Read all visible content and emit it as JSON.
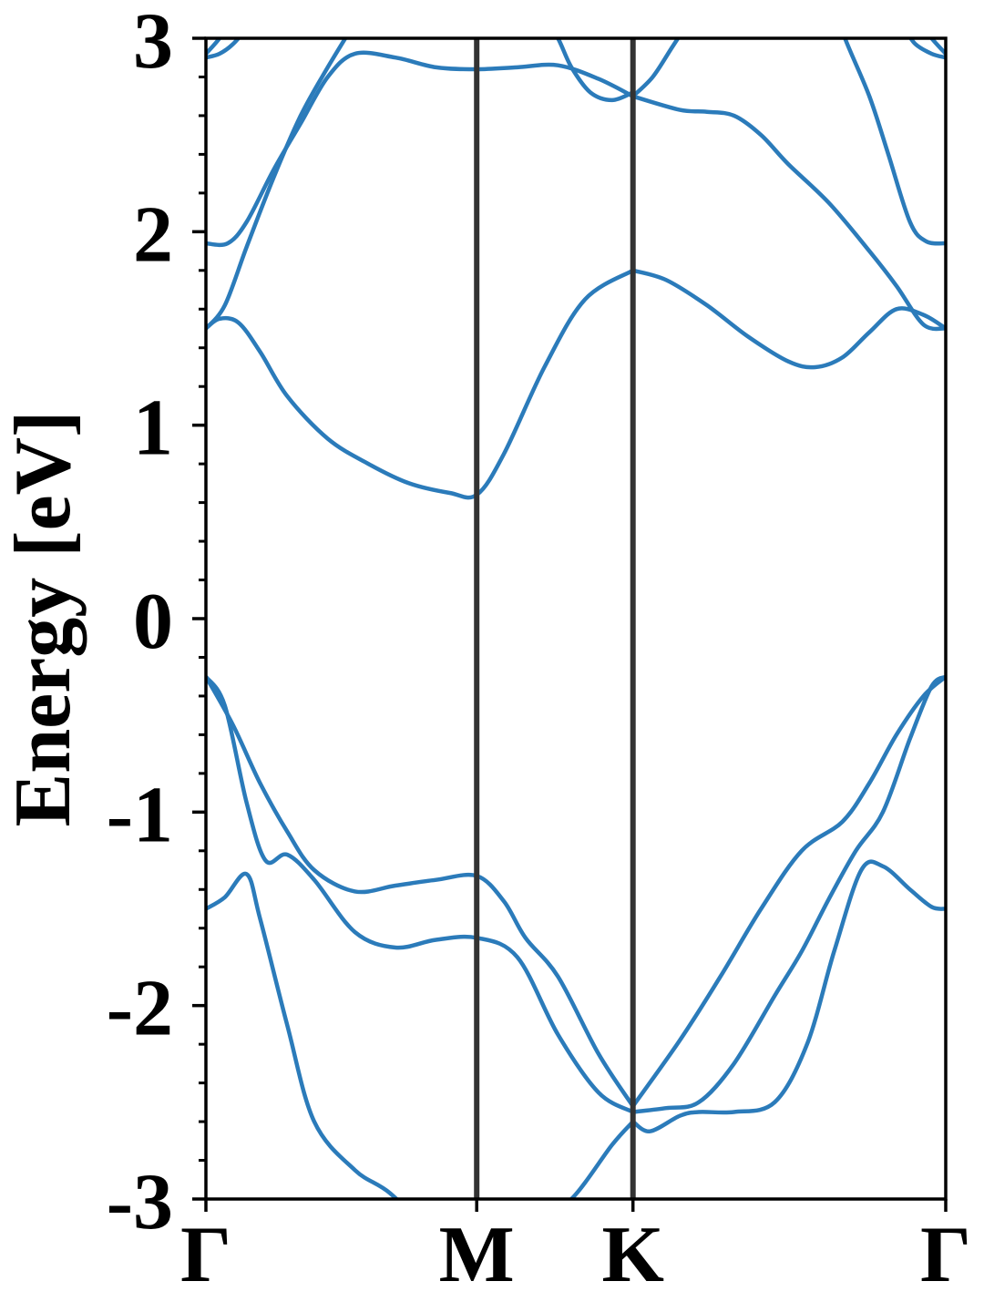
{
  "chart_data": {
    "type": "line",
    "title": "",
    "xlabel": "",
    "ylabel": "Energy [eV]",
    "ylim": [
      -3,
      3
    ],
    "xlim": [
      0,
      2.732
    ],
    "grid": false,
    "legend": "none",
    "line_color": "#2b7bba",
    "symmetry_line_color": "#333333",
    "x_ticks": [
      {
        "x": 0.0,
        "label": "Γ"
      },
      {
        "x": 1.0,
        "label": "M"
      },
      {
        "x": 1.577,
        "label": "K"
      },
      {
        "x": 2.732,
        "label": "Γ"
      }
    ],
    "symmetry_lines": [
      1.0,
      1.577
    ],
    "y_ticks": [
      {
        "y": 3,
        "label": "3"
      },
      {
        "y": 2,
        "label": "2"
      },
      {
        "y": 1,
        "label": "1"
      },
      {
        "y": 0,
        "label": "0"
      },
      {
        "y": -1,
        "label": "-1"
      },
      {
        "y": -2,
        "label": "-2"
      },
      {
        "y": -3,
        "label": "-3"
      }
    ],
    "y_minor_step": 0.2,
    "series": [
      {
        "points": [
          [
            0,
            -1.5
          ],
          [
            0.07,
            -1.44
          ],
          [
            0.15,
            -1.32
          ],
          [
            0.2,
            -1.55
          ],
          [
            0.3,
            -2.1
          ],
          [
            0.4,
            -2.6
          ],
          [
            0.55,
            -2.85
          ],
          [
            0.68,
            -2.97
          ],
          [
            0.85,
            -3.2
          ],
          [
            1.0,
            -3.35
          ],
          [
            1.2,
            -3.15
          ],
          [
            1.35,
            -3.0
          ],
          [
            1.5,
            -2.72
          ],
          [
            1.577,
            -2.6
          ]
        ]
      },
      {
        "points": [
          [
            1.577,
            -2.6
          ],
          [
            1.64,
            -2.65
          ],
          [
            1.75,
            -2.57
          ],
          [
            1.82,
            -2.55
          ],
          [
            1.95,
            -2.55
          ],
          [
            2.1,
            -2.5
          ],
          [
            2.22,
            -2.2
          ],
          [
            2.32,
            -1.72
          ],
          [
            2.42,
            -1.3
          ],
          [
            2.5,
            -1.28
          ],
          [
            2.6,
            -1.4
          ],
          [
            2.68,
            -1.49
          ],
          [
            2.732,
            -1.5
          ]
        ]
      },
      {
        "points": [
          [
            0,
            -0.3
          ],
          [
            0.07,
            -0.45
          ],
          [
            0.15,
            -0.95
          ],
          [
            0.22,
            -1.25
          ],
          [
            0.3,
            -1.22
          ],
          [
            0.4,
            -1.35
          ],
          [
            0.55,
            -1.62
          ],
          [
            0.7,
            -1.7
          ],
          [
            0.85,
            -1.66
          ],
          [
            1.0,
            -1.65
          ],
          [
            1.15,
            -1.75
          ],
          [
            1.3,
            -2.15
          ],
          [
            1.45,
            -2.45
          ],
          [
            1.577,
            -2.55
          ]
        ]
      },
      {
        "points": [
          [
            1.577,
            -2.55
          ],
          [
            1.7,
            -2.53
          ],
          [
            1.82,
            -2.5
          ],
          [
            1.95,
            -2.3
          ],
          [
            2.1,
            -1.95
          ],
          [
            2.2,
            -1.72
          ],
          [
            2.3,
            -1.45
          ],
          [
            2.4,
            -1.2
          ],
          [
            2.5,
            -1.0
          ],
          [
            2.6,
            -0.62
          ],
          [
            2.68,
            -0.35
          ],
          [
            2.732,
            -0.3
          ]
        ]
      },
      {
        "points": [
          [
            0,
            -0.3
          ],
          [
            0.1,
            -0.55
          ],
          [
            0.2,
            -0.85
          ],
          [
            0.3,
            -1.1
          ],
          [
            0.4,
            -1.3
          ],
          [
            0.55,
            -1.41
          ],
          [
            0.7,
            -1.38
          ],
          [
            0.85,
            -1.35
          ],
          [
            1.0,
            -1.33
          ],
          [
            1.1,
            -1.46
          ],
          [
            1.18,
            -1.65
          ],
          [
            1.3,
            -1.85
          ],
          [
            1.45,
            -2.25
          ],
          [
            1.577,
            -2.52
          ]
        ]
      },
      {
        "points": [
          [
            1.577,
            -2.52
          ],
          [
            1.75,
            -2.18
          ],
          [
            1.9,
            -1.85
          ],
          [
            2.05,
            -1.5
          ],
          [
            2.2,
            -1.2
          ],
          [
            2.35,
            -1.05
          ],
          [
            2.45,
            -0.85
          ],
          [
            2.55,
            -0.6
          ],
          [
            2.65,
            -0.4
          ],
          [
            2.732,
            -0.3
          ]
        ]
      },
      {
        "points": [
          [
            0,
            1.5
          ],
          [
            0.05,
            1.55
          ],
          [
            0.12,
            1.53
          ],
          [
            0.2,
            1.38
          ],
          [
            0.3,
            1.15
          ],
          [
            0.45,
            0.93
          ],
          [
            0.6,
            0.8
          ],
          [
            0.75,
            0.7
          ],
          [
            0.9,
            0.65
          ],
          [
            1.0,
            0.64
          ],
          [
            1.1,
            0.85
          ],
          [
            1.25,
            1.3
          ],
          [
            1.4,
            1.65
          ],
          [
            1.577,
            1.8
          ]
        ]
      },
      {
        "points": [
          [
            1.577,
            1.8
          ],
          [
            1.7,
            1.75
          ],
          [
            1.85,
            1.62
          ],
          [
            2.0,
            1.46
          ],
          [
            2.15,
            1.33
          ],
          [
            2.25,
            1.3
          ],
          [
            2.35,
            1.35
          ],
          [
            2.45,
            1.48
          ],
          [
            2.55,
            1.6
          ],
          [
            2.65,
            1.57
          ],
          [
            2.732,
            1.5
          ]
        ]
      },
      {
        "points": [
          [
            0,
            1.5
          ],
          [
            0.07,
            1.62
          ],
          [
            0.15,
            1.92
          ],
          [
            0.25,
            2.28
          ],
          [
            0.35,
            2.6
          ],
          [
            0.45,
            2.85
          ],
          [
            0.55,
            3.08
          ]
        ]
      },
      {
        "points": [
          [
            2.732,
            1.5
          ],
          [
            2.65,
            1.52
          ],
          [
            2.55,
            1.72
          ],
          [
            2.45,
            1.9
          ],
          [
            2.3,
            2.15
          ],
          [
            2.15,
            2.35
          ],
          [
            2.05,
            2.5
          ],
          [
            1.95,
            2.6
          ],
          [
            1.85,
            2.62
          ],
          [
            1.75,
            2.63
          ],
          [
            1.577,
            2.7
          ]
        ]
      },
      {
        "points": [
          [
            0,
            1.94
          ],
          [
            0.08,
            1.94
          ],
          [
            0.15,
            2.05
          ],
          [
            0.25,
            2.32
          ],
          [
            0.35,
            2.56
          ],
          [
            0.45,
            2.8
          ],
          [
            0.55,
            2.92
          ],
          [
            0.7,
            2.9
          ],
          [
            0.85,
            2.85
          ],
          [
            1.0,
            2.84
          ],
          [
            1.15,
            2.85
          ],
          [
            1.3,
            2.86
          ],
          [
            1.45,
            2.79
          ],
          [
            1.577,
            2.7
          ]
        ]
      },
      {
        "points": [
          [
            2.732,
            1.94
          ],
          [
            2.66,
            1.95
          ],
          [
            2.6,
            2.05
          ],
          [
            2.52,
            2.4
          ],
          [
            2.45,
            2.7
          ],
          [
            2.36,
            3.0
          ],
          [
            2.3,
            3.25
          ]
        ]
      },
      {
        "points": [
          [
            1.577,
            2.7
          ],
          [
            1.65,
            2.8
          ],
          [
            1.72,
            2.95
          ],
          [
            1.78,
            3.08
          ]
        ]
      },
      {
        "points": [
          [
            1.577,
            2.72
          ],
          [
            1.5,
            2.68
          ],
          [
            1.42,
            2.72
          ],
          [
            1.35,
            2.85
          ],
          [
            1.3,
            3.0
          ],
          [
            1.25,
            3.1
          ]
        ]
      },
      {
        "points": [
          [
            0,
            2.9
          ],
          [
            0.05,
            2.92
          ],
          [
            0.1,
            2.97
          ],
          [
            0.15,
            3.05
          ]
        ]
      },
      {
        "points": [
          [
            0,
            2.92
          ],
          [
            0.05,
            3.0
          ],
          [
            0.08,
            3.08
          ]
        ]
      },
      {
        "points": [
          [
            2.732,
            2.9
          ],
          [
            2.68,
            2.92
          ],
          [
            2.62,
            2.97
          ],
          [
            2.58,
            3.05
          ]
        ]
      },
      {
        "points": [
          [
            2.732,
            2.92
          ],
          [
            2.68,
            3.0
          ],
          [
            2.64,
            3.08
          ]
        ]
      }
    ]
  }
}
